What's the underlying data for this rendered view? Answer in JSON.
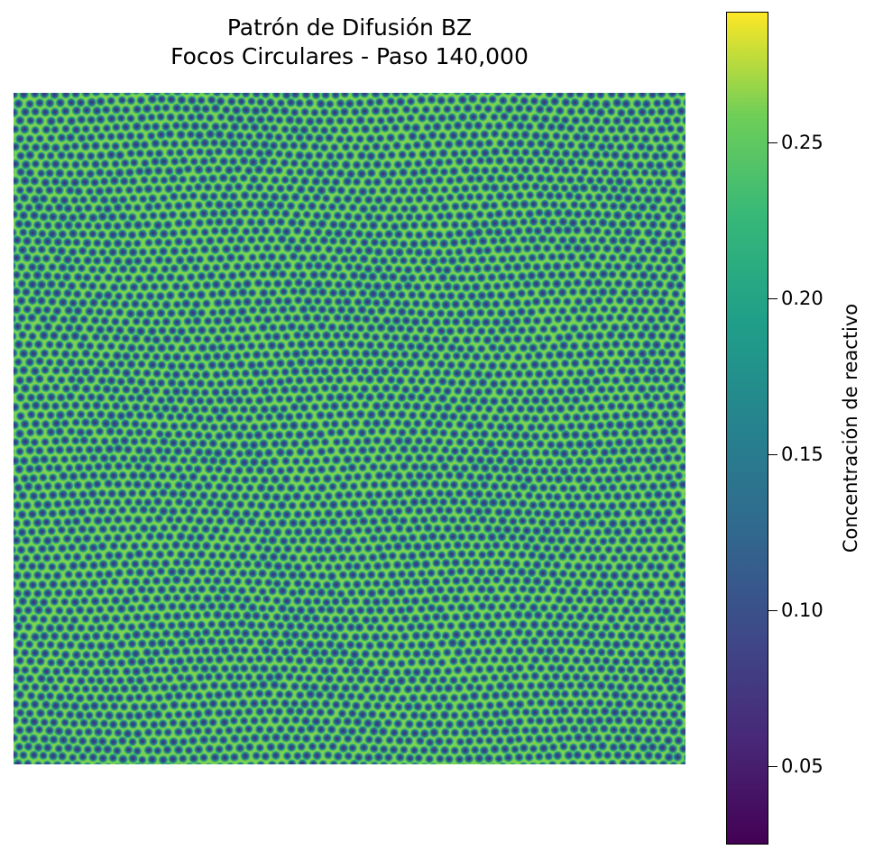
{
  "chart_data": {
    "type": "heatmap",
    "title": "Patrón de Difusión BZ",
    "subtitle": "Focos Circulares - Paso 140,000",
    "colormap": "viridis",
    "colorbar": {
      "label": "Concentración de reactivo",
      "vmin": 0.025,
      "vmax": 0.292,
      "ticks": [
        0.05,
        0.1,
        0.15,
        0.2,
        0.25
      ],
      "tick_labels": [
        "0.05",
        "0.10",
        "0.15",
        "0.20",
        "0.25"
      ]
    },
    "axes_visible": false,
    "pattern": "dense hexagonal spot lattice, mostly green with dark blue/purple dots",
    "dominant_value": 0.23
  }
}
